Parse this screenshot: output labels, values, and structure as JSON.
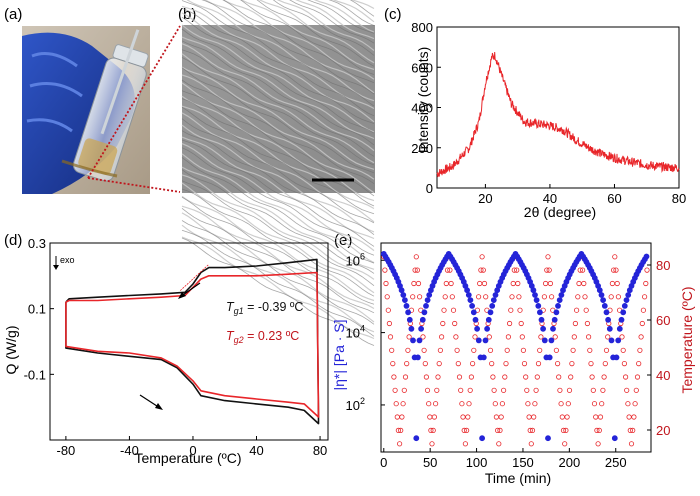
{
  "labels": {
    "a": "(a)",
    "b": "(b)",
    "c": "(c)",
    "d": "(d)",
    "e": "(e)"
  },
  "colors": {
    "red": "#e8262a",
    "blue": "#2424d8",
    "dark_red": "#c0151c",
    "black": "#111111"
  },
  "panel_c": {
    "ylabel": "Intensity (counts)",
    "xlabel": "2θ (degree)",
    "yticks": [
      "0",
      "200",
      "400",
      "600",
      "800"
    ],
    "xticks": [
      "20",
      "40",
      "60",
      "80"
    ]
  },
  "panel_d": {
    "ylabel": "Q (W/g)",
    "xlabel": "Temperature (ºC)",
    "exo": "exo",
    "tg1_prefix": "T",
    "tg1_sub": "g1",
    "tg1_value": " = -0.39 ºC",
    "tg2_prefix": "T",
    "tg2_sub": "g2",
    "tg2_value": " = 0.23 ºC",
    "yticks": [
      "0.3",
      "0.1",
      "-0.1"
    ],
    "xticks": [
      "-80",
      "-40",
      "0",
      "40",
      "80"
    ]
  },
  "panel_e": {
    "ylabel_left": "|η*| [Pa · S]",
    "ylabel_right": "Temperature (ºC)",
    "xlabel": "Time (min)",
    "ylabel_left_ticks": [
      "10",
      "10",
      "10"
    ],
    "ylabel_left_exps": [
      "6",
      "4",
      "2"
    ],
    "yticks_right": [
      "80",
      "60",
      "40",
      "20"
    ],
    "xticks": [
      "0",
      "50",
      "100",
      "150",
      "200",
      "250"
    ]
  },
  "chart_data": [
    {
      "type": "line",
      "panel": "c",
      "xlabel": "2θ (degree)",
      "ylabel": "Intensity (counts)",
      "xlim": [
        5,
        80
      ],
      "ylim": [
        0,
        800
      ],
      "series": [
        {
          "x": [
            5,
            10,
            15,
            18,
            20,
            22,
            23,
            25,
            28,
            32,
            36,
            40,
            44,
            48,
            52,
            56,
            60,
            65,
            70,
            75,
            80
          ],
          "y": [
            70,
            110,
            200,
            330,
            520,
            650,
            660,
            560,
            420,
            330,
            320,
            310,
            290,
            240,
            200,
            170,
            150,
            130,
            115,
            105,
            100
          ]
        }
      ]
    },
    {
      "type": "line",
      "panel": "d",
      "xlabel": "Temperature (ºC)",
      "ylabel": "Q (W/g)",
      "xlim": [
        -90,
        85
      ],
      "ylim": [
        -0.3,
        0.3
      ],
      "series": [
        {
          "x": [
            -80,
            -78,
            -60,
            -40,
            -20,
            -5,
            0,
            5,
            10,
            20,
            40,
            60,
            78,
            79,
            79,
            70,
            60,
            40,
            20,
            5,
            0,
            -10,
            -20,
            -40,
            -60,
            -80,
            -80,
            -80
          ],
          "y": [
            0.12,
            0.13,
            0.135,
            0.14,
            0.145,
            0.15,
            0.175,
            0.21,
            0.225,
            0.225,
            0.23,
            0.24,
            0.25,
            -0.24,
            -0.25,
            -0.21,
            -0.2,
            -0.19,
            -0.18,
            -0.165,
            -0.13,
            -0.08,
            -0.055,
            -0.045,
            -0.035,
            -0.02,
            0.1,
            0.12
          ]
        },
        {
          "x": [
            -80,
            -78,
            -60,
            -40,
            -20,
            -5,
            0,
            5,
            10,
            20,
            40,
            60,
            78,
            79,
            79,
            70,
            60,
            40,
            20,
            5,
            0,
            -10,
            -20,
            -40,
            -60,
            -80,
            -80,
            -80
          ],
          "y": [
            0.12,
            0.125,
            0.125,
            0.13,
            0.135,
            0.14,
            0.165,
            0.19,
            0.2,
            0.2,
            0.2,
            0.205,
            0.21,
            -0.22,
            -0.23,
            -0.19,
            -0.185,
            -0.175,
            -0.165,
            -0.15,
            -0.12,
            -0.075,
            -0.05,
            -0.035,
            -0.03,
            -0.015,
            0.1,
            0.12
          ]
        }
      ]
    },
    {
      "type": "scatter",
      "panel": "e",
      "xlabel": "Time (min)",
      "ylabel": "|η*| [Pa · S]",
      "ylabel_right": "Temperature (ºC)",
      "xlim": [
        -3,
        288
      ],
      "ylog": true,
      "ylim": [
        5,
        3000000
      ],
      "yrlim": [
        12,
        88
      ],
      "series": [
        {
          "peaks_x": [
            0,
            70,
            142,
            213,
            285
          ],
          "troughs_x": [
            35,
            106,
            177,
            249
          ],
          "peak_value": 1500000,
          "trough_value": 12
        },
        {
          "peaks_x": [
            0,
            35,
            70,
            106,
            142,
            177,
            213,
            249,
            285
          ],
          "troughs_x": [
            17,
            52,
            88,
            124,
            159,
            195,
            231,
            267
          ],
          "peak_value": 83,
          "trough_value": 15
        }
      ]
    }
  ]
}
